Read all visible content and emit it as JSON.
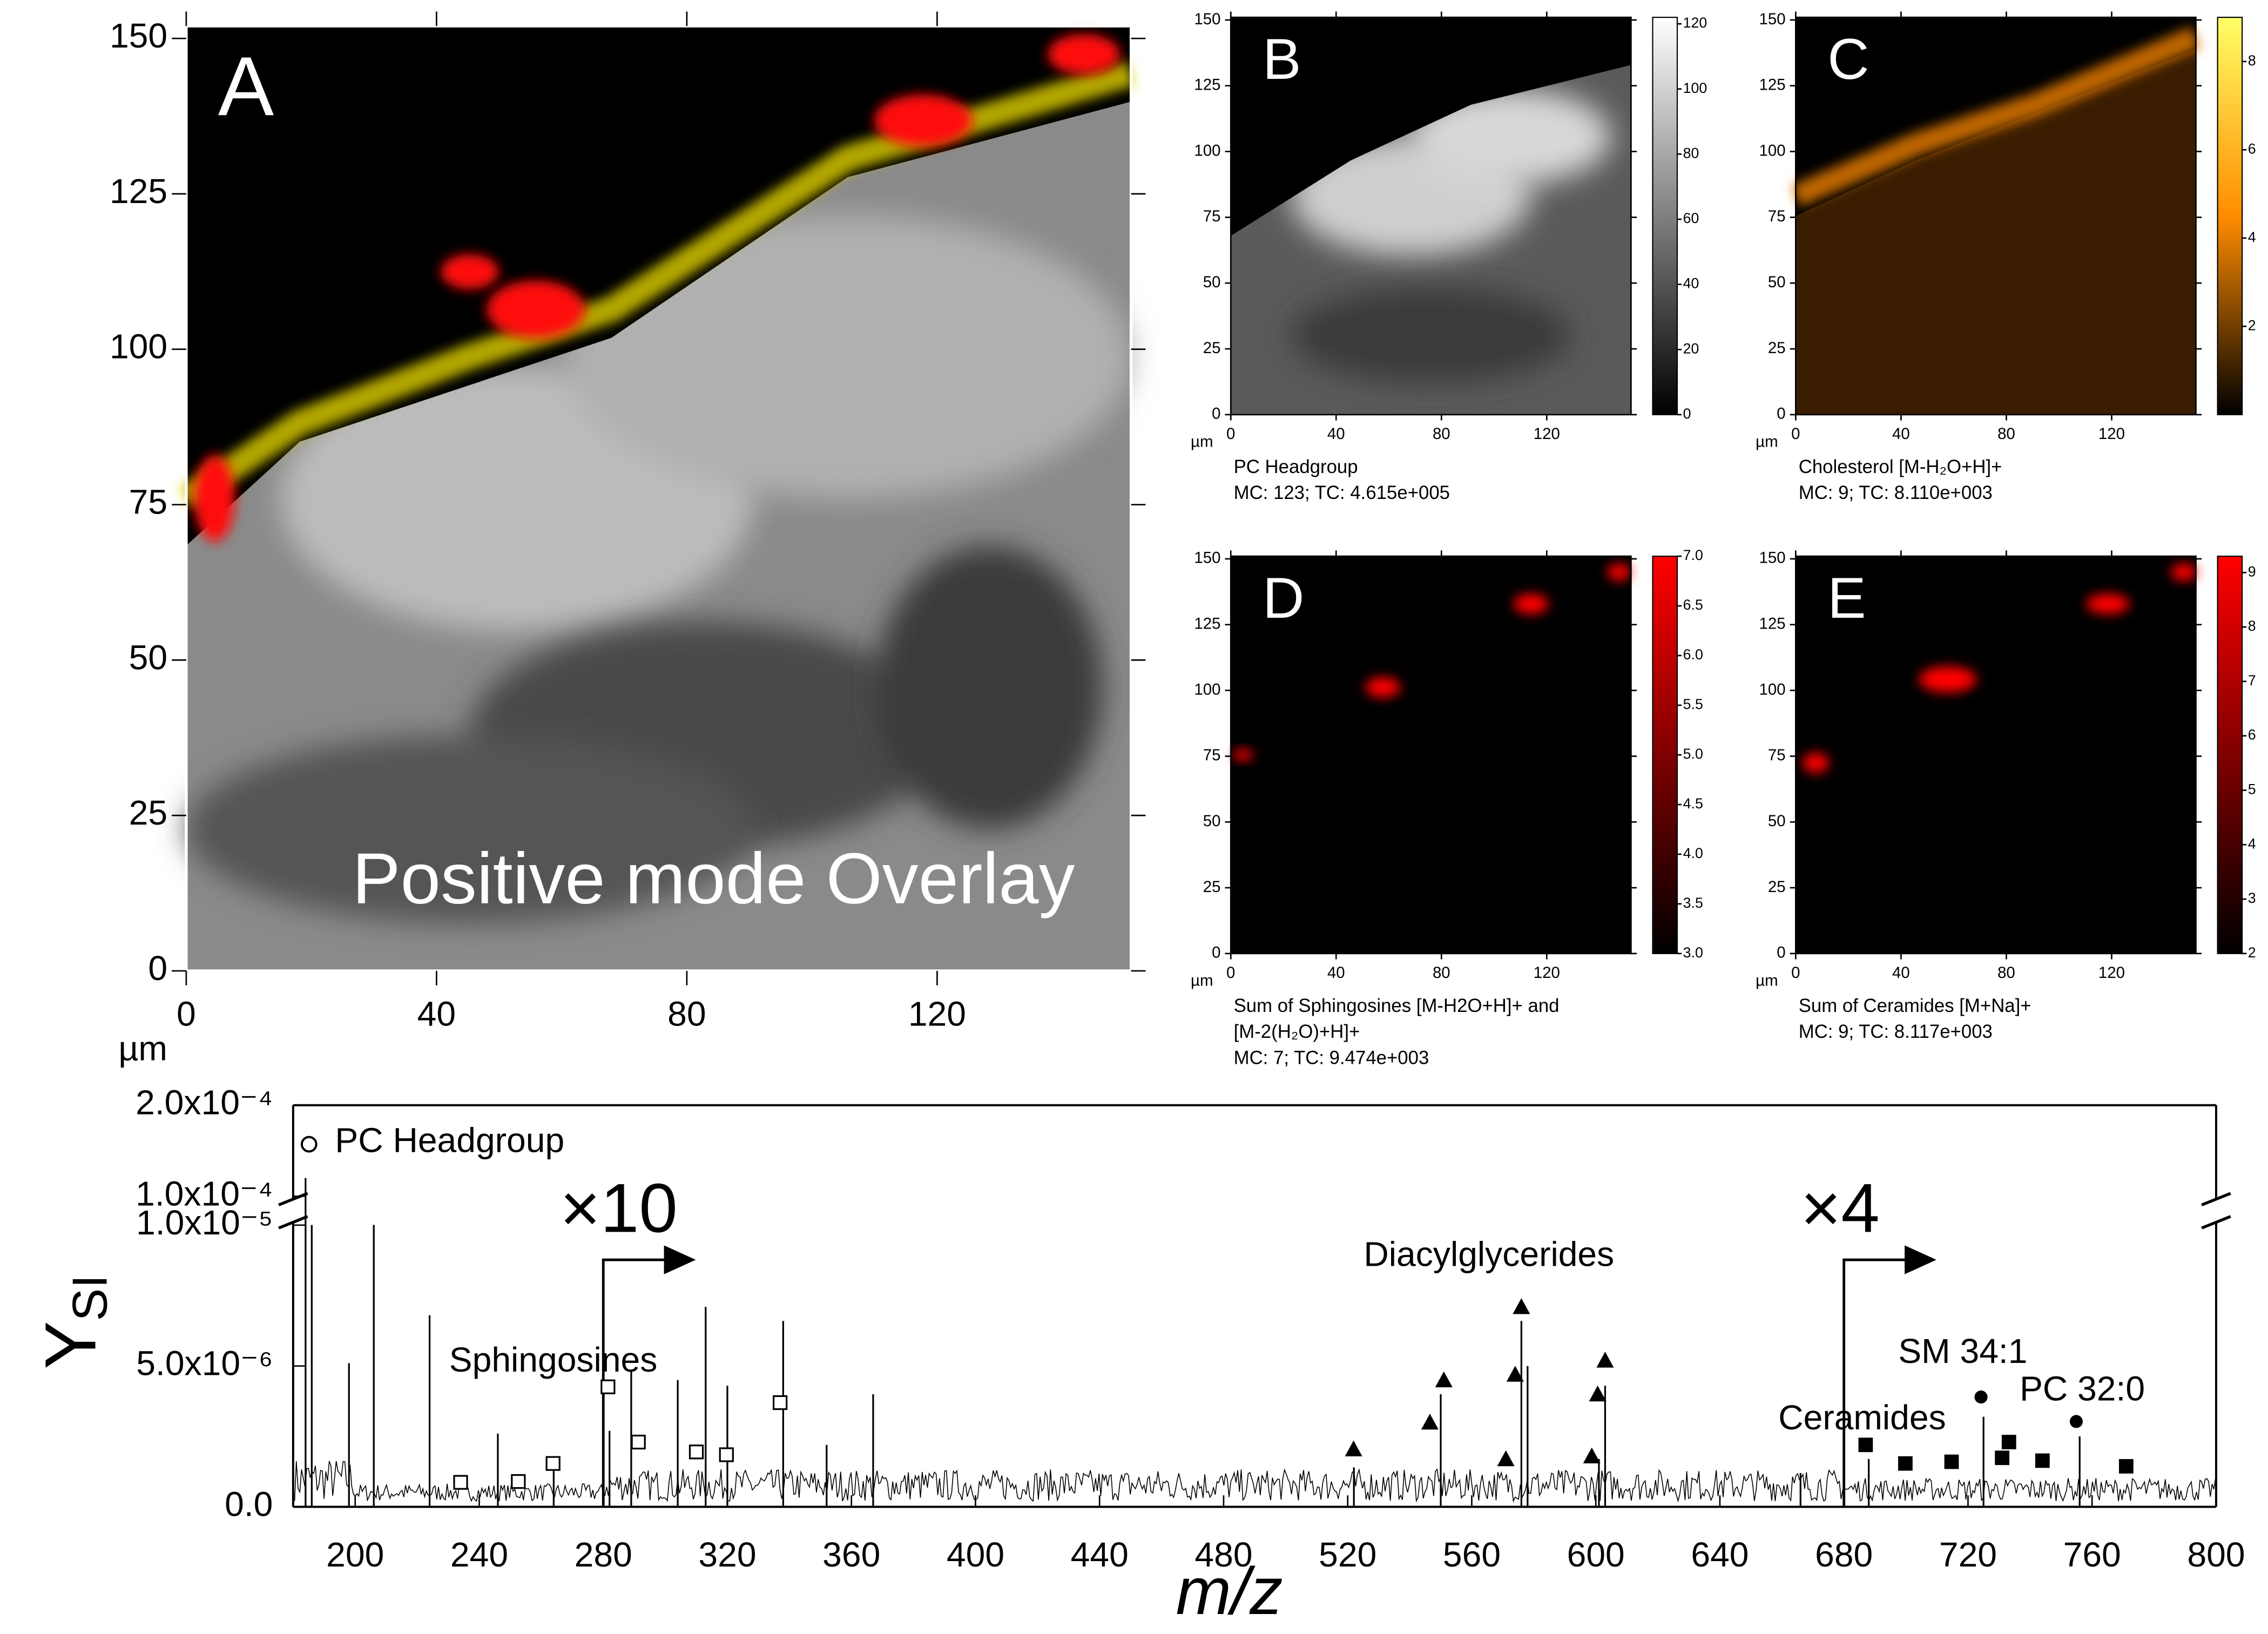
{
  "chart_data": [
    {
      "type": "heatmap",
      "label": "A",
      "title": "Positive mode Overlay",
      "x_unit": "µm",
      "xlim": [
        0,
        151
      ],
      "ylim": [
        0,
        152
      ],
      "xticks": [
        0,
        40,
        80,
        120
      ],
      "yticks": [
        0,
        25,
        50,
        75,
        100,
        125,
        150
      ]
    },
    {
      "type": "heatmap",
      "label": "B",
      "caption": [
        "PC Headgroup",
        "MC:    123; TC: 4.615e+005"
      ],
      "x_unit": "µm",
      "xlim": [
        0,
        152
      ],
      "ylim": [
        0,
        151
      ],
      "xticks": [
        0,
        40,
        80,
        120
      ],
      "yticks": [
        0,
        25,
        50,
        75,
        100,
        125,
        150
      ],
      "clim": [
        0,
        122
      ],
      "cticks": [
        0,
        20,
        40,
        60,
        80,
        100,
        120
      ],
      "colormap": [
        "#000000",
        "#ffffff"
      ]
    },
    {
      "type": "heatmap",
      "label": "C",
      "caption": [
        "Cholesterol [M-H₂O+H]+",
        "MC:      9; TC: 8.110e+003"
      ],
      "x_unit": "µm",
      "xlim": [
        0,
        152
      ],
      "ylim": [
        0,
        151
      ],
      "xticks": [
        0,
        40,
        80,
        120
      ],
      "yticks": [
        0,
        25,
        50,
        75,
        100,
        125,
        150
      ],
      "clim": [
        0,
        9
      ],
      "cticks": [
        2,
        4,
        6,
        8
      ],
      "colormap": [
        "#000000",
        "#ff8c00",
        "#ffff66"
      ]
    },
    {
      "type": "heatmap",
      "label": "D",
      "caption": [
        "Sum of Sphingosines [M-H2O+H]+ and",
        "[M-2(H₂O)+H]+",
        "MC:      7; TC: 9.474e+003"
      ],
      "x_unit": "µm",
      "xlim": [
        0,
        152
      ],
      "ylim": [
        0,
        151
      ],
      "xticks": [
        0,
        40,
        80,
        120
      ],
      "yticks": [
        0,
        25,
        50,
        75,
        100,
        125,
        150
      ],
      "clim": [
        3,
        7
      ],
      "cticks": [
        {
          "value": 3,
          "label": "3.0"
        },
        3.5,
        {
          "value": 4,
          "label": "4.0"
        },
        4.5,
        {
          "value": 5,
          "label": "5.0"
        },
        5.5,
        {
          "value": 6,
          "label": "6.0"
        },
        6.5,
        {
          "value": 7,
          "label": "7.0"
        }
      ],
      "colormap": [
        "#000000",
        "#ff0000"
      ]
    },
    {
      "type": "heatmap",
      "label": "E",
      "caption": [
        "Sum of Ceramides [M+Na]+",
        "MC:      9; TC: 8.117e+003"
      ],
      "x_unit": "µm",
      "xlim": [
        0,
        152
      ],
      "ylim": [
        0,
        151
      ],
      "xticks": [
        0,
        40,
        80,
        120
      ],
      "yticks": [
        0,
        25,
        50,
        75,
        100,
        125,
        150
      ],
      "clim": [
        2,
        9.3
      ],
      "cticks": [
        2,
        3,
        4,
        5,
        6,
        7,
        8,
        9
      ],
      "colormap": [
        "#000000",
        "#ff0000"
      ]
    },
    {
      "type": "spectrum",
      "x_label": "m/z",
      "y_label": "Y",
      "y_label_subscript": "SI",
      "color": "#000000",
      "xlim": [
        180,
        800
      ],
      "xticks": [
        200,
        240,
        280,
        320,
        360,
        400,
        440,
        480,
        520,
        560,
        600,
        640,
        680,
        720,
        760,
        800
      ],
      "ylim": [
        0,
        0.0002
      ],
      "ybreak": [
        1e-05,
        0.0001
      ],
      "yticks": [
        {
          "value": 0,
          "label": "0.0"
        },
        {
          "value": 5e-06,
          "label": "5.0x10⁻⁶"
        },
        {
          "value": 1e-05,
          "label": "1.0x10⁻⁵"
        },
        {
          "value": 0.0001,
          "label": "1.0x10⁻⁴"
        },
        {
          "value": 0.0002,
          "label": "2.0x10⁻⁴"
        }
      ],
      "legend": {
        "name": "PC Headgroup",
        "shape": "open-circle"
      },
      "x": [
        184,
        186,
        198,
        206,
        224,
        246,
        264,
        282,
        289,
        304,
        313,
        320,
        338,
        352,
        367,
        522,
        550,
        576,
        578,
        601,
        603,
        666,
        688,
        725,
        756
      ],
      "values": [
        0.00012,
        1.04e-05,
        5.1e-06,
        1.07e-05,
        6.8e-06,
        2.6e-06,
        1.7e-06,
        2.7e-06,
        4.8e-06,
        4.5e-06,
        7.1e-06,
        4.3e-06,
        6.6e-06,
        2.2e-06,
        4e-06,
        1.4e-06,
        4e-06,
        6.6e-06,
        5e-06,
        1.7e-06,
        4.3e-06,
        1.2e-06,
        1.7e-06,
        3.2e-06,
        2.5e-06
      ],
      "annotations": [
        {
          "text": "×10",
          "x": 280
        },
        {
          "text": "×4",
          "x": 680
        }
      ],
      "series": [
        {
          "name": "Sphingosines",
          "shape": "open-square",
          "x": [
            234,
            252.6,
            263.8,
            281.5,
            291.3,
            310,
            319.7,
            337
          ],
          "values": [
            8.7e-07,
            9e-07,
            1.54e-06,
            4.26e-06,
            2.3e-06,
            1.95e-06,
            1.85e-06,
            3.7e-06
          ]
        },
        {
          "name": "Diacylglycerides",
          "shape": "triangle",
          "x": [
            521.9,
            546.5,
            551,
            571,
            574,
            576,
            598.7,
            600.6,
            603
          ],
          "values": [
            2.05e-06,
            3e-06,
            4.5e-06,
            1.7e-06,
            4.7e-06,
            7.1e-06,
            1.8e-06,
            4e-06,
            5.2e-06
          ]
        },
        {
          "name": "Ceramides",
          "shape": "filled-square",
          "x": [
            687,
            699.8,
            714.7,
            731,
            733.2,
            744,
            771
          ],
          "values": [
            2.2e-06,
            1.54e-06,
            1.6e-06,
            1.74e-06,
            2.3e-06,
            1.64e-06,
            1.44e-06
          ]
        },
        {
          "name": "SM 34:1",
          "shape": "dot",
          "x": [
            724.2
          ],
          "values": [
            3.9e-06
          ]
        },
        {
          "name": "PC 32:0",
          "shape": "dot",
          "x": [
            754.9
          ],
          "values": [
            3.03e-06
          ]
        }
      ]
    }
  ]
}
